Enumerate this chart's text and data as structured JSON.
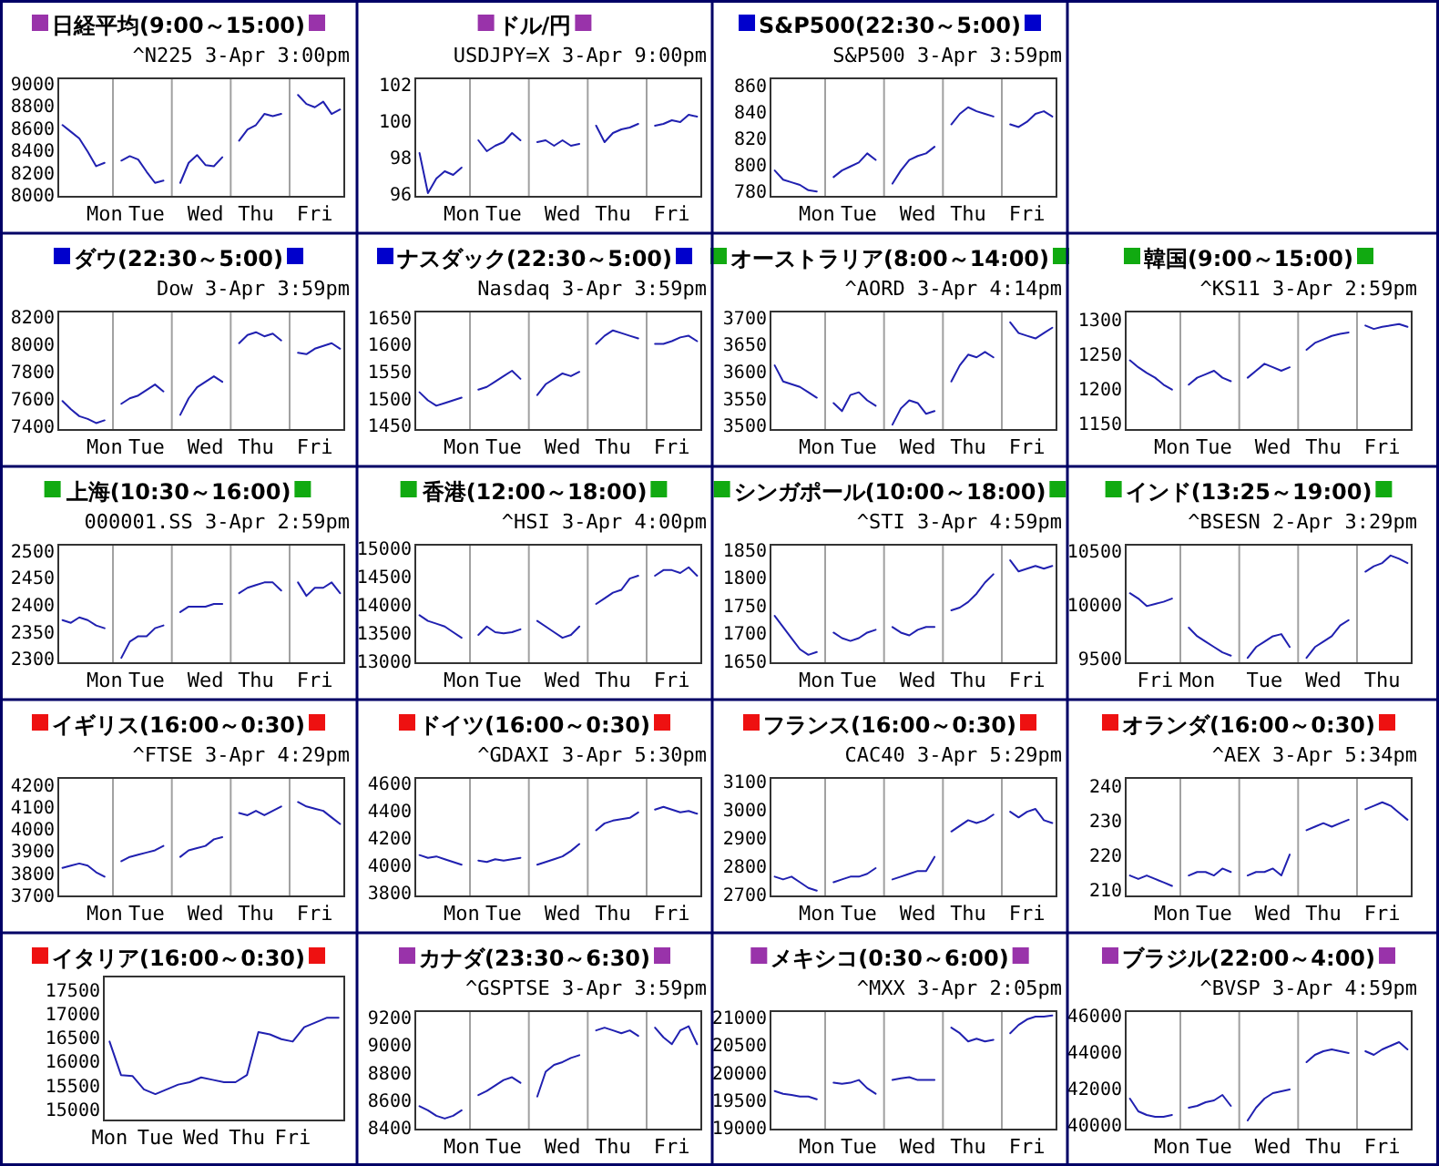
{
  "chart_data": [
    {
      "type": "line",
      "title": "日経平均(9:00～15:00)",
      "subtitle": "^N225 3-Apr 3:00pm",
      "ylim": [
        7975,
        9040
      ],
      "yticks": [
        8000,
        8200,
        8400,
        8600,
        8800,
        9000
      ],
      "categories": [
        null,
        null,
        null,
        null,
        null,
        "Mon",
        null,
        null,
        null,
        null,
        "Tue",
        null,
        null,
        null,
        null,
        null,
        null,
        "Wed",
        null,
        null,
        null,
        null,
        null,
        "Thu",
        null,
        null,
        null,
        null,
        null,
        null,
        "Fri",
        null,
        null,
        null
      ],
      "series": [
        {
          "color": "#2020b0",
          "values": [
            8620,
            8560,
            8500,
            8380,
            8250,
            8280,
            null,
            8300,
            8340,
            8310,
            8200,
            8100,
            8120,
            null,
            8100,
            8280,
            8350,
            8260,
            8250,
            8330,
            null,
            8480,
            8580,
            8620,
            8720,
            8700,
            8720,
            null,
            8890,
            8810,
            8780,
            8830,
            8720,
            8760
          ]
        }
      ]
    },
    {
      "type": "line",
      "title": "ドル/円",
      "subtitle": "USDJPY=X 3-Apr 9:00pm",
      "ylim": [
        95.8,
        102.3
      ],
      "yticks": [
        96,
        98,
        100,
        102
      ],
      "categories": [
        null,
        null,
        null,
        null,
        null,
        "Mon",
        null,
        null,
        null,
        null,
        "Tue",
        null,
        null,
        null,
        null,
        null,
        null,
        "Wed",
        null,
        null,
        null,
        null,
        null,
        "Thu",
        null,
        null,
        null,
        null,
        null,
        null,
        "Fri",
        null,
        null,
        null
      ],
      "series": [
        {
          "color": "#2020b0",
          "values": [
            98.2,
            96.0,
            96.8,
            97.2,
            97.0,
            97.4,
            null,
            98.9,
            98.3,
            98.6,
            98.8,
            99.3,
            98.9,
            null,
            98.8,
            98.9,
            98.6,
            98.9,
            98.6,
            98.7,
            null,
            99.7,
            98.8,
            99.3,
            99.5,
            99.6,
            99.8,
            null,
            99.7,
            99.8,
            100.0,
            99.9,
            100.3,
            100.2
          ]
        }
      ]
    },
    {
      "type": "line",
      "title": "S&P500(22:30～5:00)",
      "subtitle": "S&P500 3-Apr 3:59pm",
      "ylim": [
        775,
        865
      ],
      "yticks": [
        780,
        800,
        820,
        840,
        860
      ],
      "categories": [
        null,
        null,
        null,
        null,
        null,
        "Mon",
        null,
        null,
        null,
        null,
        "Tue",
        null,
        null,
        null,
        null,
        null,
        null,
        "Wed",
        null,
        null,
        null,
        null,
        null,
        "Thu",
        null,
        null,
        null,
        null,
        null,
        null,
        "Fri",
        null,
        null,
        null
      ],
      "series": [
        {
          "color": "#2020b0",
          "values": [
            795,
            788,
            786,
            784,
            780,
            779,
            null,
            790,
            795,
            798,
            801,
            808,
            803,
            null,
            785,
            795,
            803,
            806,
            808,
            813,
            null,
            830,
            838,
            843,
            840,
            838,
            836,
            null,
            830,
            828,
            832,
            838,
            840,
            836
          ]
        }
      ]
    },
    {
      "type": "line",
      "title": "ダウ(22:30～5:00)",
      "subtitle": "Dow 3-Apr 3:59pm",
      "ylim": [
        7370,
        8230
      ],
      "yticks": [
        7400,
        7600,
        7800,
        8000,
        8200
      ],
      "categories": [
        null,
        null,
        null,
        null,
        null,
        "Mon",
        null,
        null,
        null,
        null,
        "Tue",
        null,
        null,
        null,
        null,
        null,
        null,
        "Wed",
        null,
        null,
        null,
        null,
        null,
        "Thu",
        null,
        null,
        null,
        null,
        null,
        null,
        "Fri",
        null,
        null,
        null
      ],
      "series": [
        {
          "color": "#2020b0",
          "values": [
            7580,
            7520,
            7470,
            7450,
            7420,
            7440,
            null,
            7560,
            7600,
            7620,
            7660,
            7700,
            7650,
            null,
            7480,
            7600,
            7680,
            7720,
            7760,
            7720,
            null,
            8000,
            8060,
            8080,
            8050,
            8070,
            8020,
            null,
            7930,
            7920,
            7960,
            7980,
            8000,
            7960
          ]
        }
      ]
    },
    {
      "type": "line",
      "title": "ナスダック(22:30～5:00)",
      "subtitle": "Nasdaq 3-Apr 3:59pm",
      "ylim": [
        1440,
        1660
      ],
      "yticks": [
        1450,
        1500,
        1550,
        1600,
        1650
      ],
      "categories": [
        null,
        null,
        null,
        null,
        null,
        "Mon",
        null,
        null,
        null,
        null,
        "Tue",
        null,
        null,
        null,
        null,
        null,
        null,
        "Wed",
        null,
        null,
        null,
        null,
        null,
        "Thu",
        null,
        null,
        null,
        null,
        null,
        null,
        "Fri",
        null,
        null,
        null
      ],
      "series": [
        {
          "color": "#2020b0",
          "values": [
            1510,
            1495,
            1485,
            1490,
            1495,
            1500,
            null,
            1515,
            1520,
            1530,
            1540,
            1550,
            1535,
            null,
            1505,
            1525,
            1535,
            1545,
            1540,
            1548,
            null,
            1600,
            1615,
            1625,
            1620,
            1615,
            1610,
            null,
            1600,
            1600,
            1605,
            1612,
            1615,
            1605
          ]
        }
      ]
    },
    {
      "type": "line",
      "title": "オーストラリア(8:00～14:00)",
      "subtitle": "^AORD 3-Apr 4:14pm",
      "ylim": [
        3490,
        3710
      ],
      "yticks": [
        3500,
        3550,
        3600,
        3650,
        3700
      ],
      "categories": [
        null,
        null,
        null,
        null,
        null,
        "Mon",
        null,
        null,
        null,
        null,
        "Tue",
        null,
        null,
        null,
        null,
        null,
        null,
        "Wed",
        null,
        null,
        null,
        null,
        null,
        "Thu",
        null,
        null,
        null,
        null,
        null,
        null,
        "Fri",
        null,
        null,
        null
      ],
      "series": [
        {
          "color": "#2020b0",
          "values": [
            3610,
            3580,
            3575,
            3570,
            3560,
            3550,
            null,
            3540,
            3525,
            3555,
            3560,
            3545,
            3535,
            null,
            3500,
            3530,
            3545,
            3540,
            3520,
            3525,
            null,
            3580,
            3610,
            3630,
            3625,
            3635,
            3625,
            null,
            3690,
            3670,
            3665,
            3660,
            3670,
            3680
          ]
        }
      ]
    },
    {
      "type": "line",
      "title": "韓国(9:00～15:00)",
      "subtitle": "^KS11 3-Apr 2:59pm",
      "ylim": [
        1140,
        1310
      ],
      "yticks": [
        1150,
        1200,
        1250,
        1300
      ],
      "categories": [
        null,
        null,
        null,
        null,
        null,
        "Mon",
        null,
        null,
        null,
        null,
        "Tue",
        null,
        null,
        null,
        null,
        null,
        null,
        "Wed",
        null,
        null,
        null,
        null,
        null,
        "Thu",
        null,
        null,
        null,
        null,
        null,
        null,
        "Fri",
        null,
        null,
        null
      ],
      "series": [
        {
          "color": "#2020b0",
          "values": [
            1240,
            1230,
            1222,
            1215,
            1205,
            1198,
            null,
            1205,
            1215,
            1220,
            1225,
            1215,
            1210,
            null,
            1215,
            1225,
            1235,
            1230,
            1225,
            1230,
            null,
            1255,
            1265,
            1270,
            1275,
            1278,
            1280,
            null,
            1290,
            1285,
            1288,
            1290,
            1292,
            1288
          ]
        }
      ]
    },
    {
      "type": "line",
      "title": "上海(10:30～16:00)",
      "subtitle": "000001.SS 3-Apr 2:59pm",
      "ylim": [
        2290,
        2510
      ],
      "yticks": [
        2300,
        2350,
        2400,
        2450,
        2500
      ],
      "categories": [
        null,
        null,
        null,
        null,
        null,
        "Mon",
        null,
        null,
        null,
        null,
        "Tue",
        null,
        null,
        null,
        null,
        null,
        null,
        "Wed",
        null,
        null,
        null,
        null,
        null,
        "Thu",
        null,
        null,
        null,
        null,
        null,
        null,
        "Fri",
        null,
        null,
        null
      ],
      "series": [
        {
          "color": "#2020b0",
          "values": [
            2370,
            2365,
            2375,
            2370,
            2360,
            2355,
            null,
            2300,
            2330,
            2340,
            2340,
            2355,
            2360,
            null,
            2385,
            2395,
            2395,
            2395,
            2400,
            2400,
            null,
            2420,
            2430,
            2435,
            2440,
            2440,
            2425,
            null,
            2440,
            2415,
            2430,
            2430,
            2440,
            2420
          ]
        }
      ]
    },
    {
      "type": "line",
      "title": "香港(12:00～18:00)",
      "subtitle": "^HSI 3-Apr 4:00pm",
      "ylim": [
        12950,
        15050
      ],
      "yticks": [
        13000,
        13500,
        14000,
        14500,
        15000
      ],
      "categories": [
        null,
        null,
        null,
        null,
        null,
        "Mon",
        null,
        null,
        null,
        null,
        "Tue",
        null,
        null,
        null,
        null,
        null,
        null,
        "Wed",
        null,
        null,
        null,
        null,
        null,
        "Thu",
        null,
        null,
        null,
        null,
        null,
        null,
        "Fri",
        null,
        null,
        null
      ],
      "series": [
        {
          "color": "#2020b0",
          "values": [
            13800,
            13700,
            13650,
            13600,
            13500,
            13400,
            null,
            13450,
            13600,
            13500,
            13480,
            13500,
            13550,
            null,
            13700,
            13600,
            13500,
            13400,
            13450,
            13600,
            null,
            14000,
            14100,
            14200,
            14250,
            14450,
            14500,
            null,
            14500,
            14600,
            14600,
            14550,
            14650,
            14500
          ]
        }
      ]
    },
    {
      "type": "line",
      "title": "シンガポール(10:00～18:00)",
      "subtitle": "^STI 3-Apr 4:59pm",
      "ylim": [
        1645,
        1858
      ],
      "yticks": [
        1650,
        1700,
        1750,
        1800,
        1850
      ],
      "categories": [
        null,
        null,
        null,
        null,
        null,
        "Mon",
        null,
        null,
        null,
        null,
        "Tue",
        null,
        null,
        null,
        null,
        null,
        null,
        "Wed",
        null,
        null,
        null,
        null,
        null,
        "Thu",
        null,
        null,
        null,
        null,
        null,
        null,
        "Fri",
        null,
        null,
        null
      ],
      "series": [
        {
          "color": "#2020b0",
          "values": [
            1730,
            1710,
            1690,
            1670,
            1660,
            1665,
            null,
            1700,
            1690,
            1685,
            1690,
            1700,
            1705,
            null,
            1710,
            1700,
            1695,
            1705,
            1710,
            1710,
            null,
            1740,
            1745,
            1755,
            1770,
            1790,
            1805,
            null,
            1830,
            1810,
            1815,
            1820,
            1815,
            1820
          ]
        }
      ]
    },
    {
      "type": "line",
      "title": "インド(13:25～19:00)",
      "subtitle": "^BSESN 2-Apr 3:29pm",
      "ylim": [
        9450,
        10550
      ],
      "yticks": [
        9500,
        10000,
        10500
      ],
      "categories": [
        null,
        null,
        null,
        "Fri",
        null,
        null,
        null,
        null,
        "Mon",
        null,
        null,
        null,
        null,
        null,
        null,
        null,
        "Tue",
        null,
        null,
        null,
        null,
        null,
        null,
        "Wed",
        null,
        null,
        null,
        null,
        null,
        null,
        "Thu",
        null,
        null,
        null
      ],
      "series": [
        {
          "color": "#2020b0",
          "values": [
            10100,
            10050,
            9980,
            10000,
            10020,
            10050,
            null,
            9780,
            9700,
            9650,
            9600,
            9550,
            9520,
            null,
            9500,
            9600,
            9650,
            9700,
            9720,
            9600,
            null,
            9500,
            9600,
            9650,
            9700,
            9800,
            9850,
            null,
            10300,
            10350,
            10380,
            10450,
            10420,
            10380
          ]
        }
      ]
    },
    {
      "type": "line",
      "title": "イギリス(16:00～0:30)",
      "subtitle": "^FTSE 3-Apr 4:29pm",
      "ylim": [
        3690,
        4230
      ],
      "yticks": [
        3700,
        3800,
        3900,
        4000,
        4100,
        4200
      ],
      "categories": [
        null,
        null,
        null,
        null,
        null,
        "Mon",
        null,
        null,
        null,
        null,
        "Tue",
        null,
        null,
        null,
        null,
        null,
        null,
        "Wed",
        null,
        null,
        null,
        null,
        null,
        "Thu",
        null,
        null,
        null,
        null,
        null,
        null,
        "Fri",
        null,
        null,
        null
      ],
      "series": [
        {
          "color": "#2020b0",
          "values": [
            3820,
            3830,
            3840,
            3830,
            3800,
            3780,
            null,
            3850,
            3870,
            3880,
            3890,
            3900,
            3920,
            null,
            3870,
            3900,
            3910,
            3920,
            3950,
            3960,
            null,
            4070,
            4060,
            4080,
            4060,
            4080,
            4100,
            null,
            4120,
            4100,
            4090,
            4080,
            4050,
            4020
          ]
        }
      ]
    },
    {
      "type": "line",
      "title": "ドイツ(16:00～0:30)",
      "subtitle": "^GDAXI 3-Apr 5:30pm",
      "ylim": [
        3770,
        4630
      ],
      "yticks": [
        3800,
        4000,
        4200,
        4400,
        4600
      ],
      "categories": [
        null,
        null,
        null,
        null,
        null,
        "Mon",
        null,
        null,
        null,
        null,
        "Tue",
        null,
        null,
        null,
        null,
        null,
        null,
        "Wed",
        null,
        null,
        null,
        null,
        null,
        "Thu",
        null,
        null,
        null,
        null,
        null,
        null,
        "Fri",
        null,
        null,
        null
      ],
      "series": [
        {
          "color": "#2020b0",
          "values": [
            4070,
            4050,
            4060,
            4040,
            4020,
            4000,
            null,
            4030,
            4020,
            4040,
            4030,
            4040,
            4050,
            null,
            4000,
            4020,
            4040,
            4060,
            4100,
            4150,
            null,
            4250,
            4300,
            4320,
            4330,
            4340,
            4380,
            null,
            4400,
            4420,
            4400,
            4380,
            4390,
            4370
          ]
        }
      ]
    },
    {
      "type": "line",
      "title": "フランス(16:00～0:30)",
      "subtitle": "CAC40 3-Apr 5:29pm",
      "ylim": [
        2690,
        3110
      ],
      "yticks": [
        2700,
        2800,
        2900,
        3000,
        3100
      ],
      "categories": [
        null,
        null,
        null,
        null,
        null,
        "Mon",
        null,
        null,
        null,
        null,
        "Tue",
        null,
        null,
        null,
        null,
        null,
        null,
        "Wed",
        null,
        null,
        null,
        null,
        null,
        "Thu",
        null,
        null,
        null,
        null,
        null,
        null,
        "Fri",
        null,
        null,
        null
      ],
      "series": [
        {
          "color": "#2020b0",
          "values": [
            2760,
            2750,
            2760,
            2740,
            2720,
            2710,
            null,
            2740,
            2750,
            2760,
            2760,
            2770,
            2790,
            null,
            2750,
            2760,
            2770,
            2780,
            2780,
            2830,
            null,
            2920,
            2940,
            2960,
            2950,
            2960,
            2980,
            null,
            2990,
            2970,
            2990,
            3000,
            2960,
            2950
          ]
        }
      ]
    },
    {
      "type": "line",
      "title": "オランダ(16:00～0:30)",
      "subtitle": "^AEX 3-Apr 5:34pm",
      "ylim": [
        208,
        242
      ],
      "yticks": [
        210,
        220,
        230,
        240
      ],
      "categories": [
        null,
        null,
        null,
        null,
        null,
        "Mon",
        null,
        null,
        null,
        null,
        "Tue",
        null,
        null,
        null,
        null,
        null,
        null,
        "Wed",
        null,
        null,
        null,
        null,
        null,
        "Thu",
        null,
        null,
        null,
        null,
        null,
        null,
        "Fri",
        null,
        null,
        null
      ],
      "series": [
        {
          "color": "#2020b0",
          "values": [
            214,
            213,
            214,
            213,
            212,
            211,
            null,
            214,
            215,
            215,
            214,
            216,
            215,
            null,
            214,
            215,
            215,
            216,
            214,
            220,
            null,
            227,
            228,
            229,
            228,
            229,
            230,
            null,
            233,
            234,
            235,
            234,
            232,
            230
          ]
        }
      ]
    },
    {
      "type": "line",
      "title": "イタリア(16:00～0:30)",
      "ylim": [
        14750,
        17760
      ],
      "yticks": [
        15000,
        15500,
        16000,
        16500,
        17000,
        17500
      ],
      "categories": [
        "Mon",
        null,
        null,
        null,
        "Tue",
        null,
        null,
        null,
        "Wed",
        null,
        null,
        null,
        "Thu",
        null,
        null,
        null,
        "Fri",
        null,
        null,
        null,
        null
      ],
      "series": [
        {
          "color": "#2020b0",
          "values": [
            16400,
            15700,
            15680,
            15400,
            15300,
            15400,
            15500,
            15550,
            15650,
            15600,
            15550,
            15550,
            15700,
            16600,
            16550,
            16450,
            16400,
            16700,
            16800,
            16900,
            16900
          ]
        }
      ]
    },
    {
      "type": "line",
      "title": "カナダ(23:30～6:30)",
      "subtitle": "^GSPTSE 3-Apr 3:59pm",
      "ylim": [
        8380,
        9240
      ],
      "yticks": [
        8400,
        8600,
        8800,
        9000,
        9200
      ],
      "categories": [
        null,
        null,
        null,
        null,
        null,
        "Mon",
        null,
        null,
        null,
        null,
        "Tue",
        null,
        null,
        null,
        null,
        null,
        null,
        "Wed",
        null,
        null,
        null,
        null,
        null,
        "Thu",
        null,
        null,
        null,
        null,
        null,
        null,
        "Fri",
        null,
        null,
        null
      ],
      "series": [
        {
          "color": "#2020b0",
          "values": [
            8550,
            8520,
            8480,
            8460,
            8480,
            8520,
            null,
            8630,
            8660,
            8700,
            8740,
            8760,
            8720,
            null,
            8620,
            8800,
            8850,
            8870,
            8900,
            8920,
            null,
            9100,
            9120,
            9100,
            9080,
            9100,
            9060,
            null,
            9120,
            9050,
            9000,
            9100,
            9130,
            9000
          ]
        }
      ]
    },
    {
      "type": "line",
      "title": "メキシコ(0:30～6:00)",
      "subtitle": "^MXX 3-Apr 2:05pm",
      "ylim": [
        18950,
        21100
      ],
      "yticks": [
        19000,
        19500,
        20000,
        20500,
        21000
      ],
      "categories": [
        null,
        null,
        null,
        null,
        null,
        "Mon",
        null,
        null,
        null,
        null,
        "Tue",
        null,
        null,
        null,
        null,
        null,
        null,
        "Wed",
        null,
        null,
        null,
        null,
        null,
        "Thu",
        null,
        null,
        null,
        null,
        null,
        null,
        "Fri",
        null,
        null,
        null
      ],
      "series": [
        {
          "color": "#2020b0",
          "values": [
            19650,
            19600,
            19580,
            19550,
            19550,
            19500,
            null,
            19800,
            19780,
            19800,
            19850,
            19700,
            19600,
            null,
            19850,
            19880,
            19900,
            19850,
            19850,
            19850,
            null,
            20800,
            20700,
            20550,
            20600,
            20550,
            20580,
            null,
            20700,
            20850,
            20950,
            21000,
            21000,
            21020
          ]
        }
      ]
    },
    {
      "type": "line",
      "title": "ブラジル(22:00～4:00)",
      "subtitle": "^BVSP 3-Apr 4:59pm",
      "ylim": [
        39700,
        46200
      ],
      "yticks": [
        40000,
        42000,
        44000,
        46000
      ],
      "categories": [
        null,
        null,
        null,
        null,
        null,
        "Mon",
        null,
        null,
        null,
        null,
        "Tue",
        null,
        null,
        null,
        null,
        null,
        null,
        "Wed",
        null,
        null,
        null,
        null,
        null,
        "Thu",
        null,
        null,
        null,
        null,
        null,
        null,
        "Fri",
        null,
        null,
        null
      ],
      "series": [
        {
          "color": "#2020b0",
          "values": [
            41400,
            40700,
            40500,
            40400,
            40400,
            40500,
            null,
            40900,
            41000,
            41200,
            41300,
            41600,
            41000,
            null,
            40200,
            40900,
            41400,
            41700,
            41800,
            41900,
            null,
            43400,
            43800,
            44000,
            44100,
            44000,
            43900,
            null,
            44000,
            43800,
            44100,
            44300,
            44500,
            44100
          ]
        }
      ]
    }
  ]
}
